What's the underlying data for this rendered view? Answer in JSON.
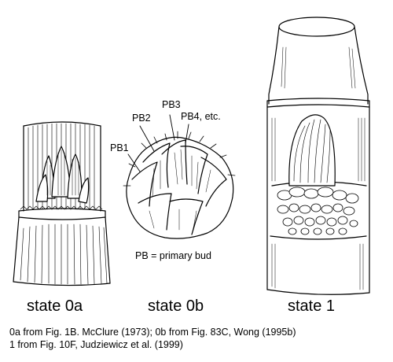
{
  "panels": [
    {
      "id": "0a",
      "label": "state 0a"
    },
    {
      "id": "0b",
      "label": "state 0b"
    },
    {
      "id": "1",
      "label": "state 1"
    }
  ],
  "bud_labels": {
    "pb1": "PB1",
    "pb2": "PB2",
    "pb3": "PB3",
    "pb4": "PB4, etc.",
    "legend": "PB = primary bud"
  },
  "caption": {
    "line1": "0a from Fig. 1B. McClure (1973); 0b from Fig. 83C, Wong (1995b)",
    "line2": "1 from Fig. 10F, Judziewicz et al. (1999)"
  },
  "colors": {
    "ink": "#000000",
    "paper": "#ffffff"
  }
}
